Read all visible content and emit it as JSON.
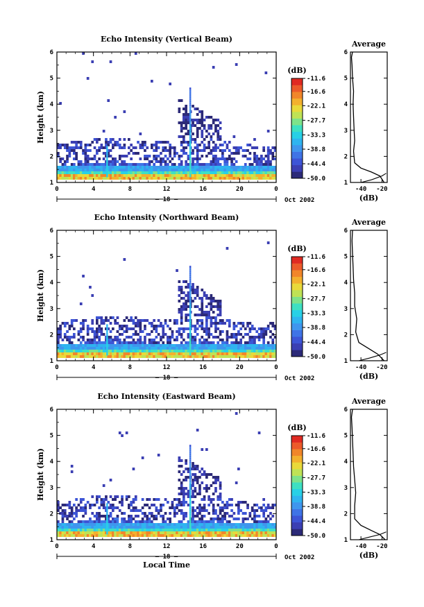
{
  "chart_data": [
    {
      "type": "heatmap",
      "title": "Echo Intensity (Vertical Beam)",
      "ylabel": "Height (km)",
      "x_ticks": [
        "0",
        "4",
        "8",
        "12",
        "16",
        "20",
        "0"
      ],
      "xlim": [
        0,
        24
      ],
      "y_ticks": [
        "1",
        "2",
        "3",
        "4",
        "5",
        "6"
      ],
      "ylim": [
        1,
        6
      ],
      "date_label": "18",
      "date_suffix": "Oct 2002",
      "colorbar": {
        "unit": "(dB)",
        "ticks": [
          "-11.6",
          "-16.6",
          "-22.1",
          "-27.7",
          "-33.3",
          "-38.8",
          "-44.4",
          "-50.0"
        ],
        "range": [
          -50.0,
          -11.6
        ]
      },
      "profile": {
        "title": "Average",
        "xlabel": "(dB)",
        "x_ticks": [
          "-40",
          "-20"
        ],
        "xlim": [
          -50,
          -15
        ],
        "y_ticks": [
          "1",
          "2",
          "3",
          "4",
          "5",
          "6"
        ],
        "ylim": [
          1,
          6
        ],
        "line": [
          [
            -18,
            1.0
          ],
          [
            -22,
            1.25
          ],
          [
            -30,
            1.4
          ],
          [
            -40,
            1.55
          ],
          [
            -46,
            1.75
          ],
          [
            -47,
            2.2
          ],
          [
            -46,
            2.6
          ],
          [
            -46.5,
            3.0
          ],
          [
            -47,
            3.5
          ],
          [
            -47.5,
            4.0
          ],
          [
            -47,
            4.5
          ],
          [
            -48,
            5.0
          ],
          [
            -48.5,
            5.5
          ],
          [
            -49,
            5.8
          ],
          [
            -48,
            6.0
          ]
        ],
        "line2": [
          [
            -40,
            1.0
          ],
          [
            -30,
            1.1
          ],
          [
            -20,
            1.25
          ],
          [
            -16,
            1.35
          ]
        ]
      }
    },
    {
      "type": "heatmap",
      "title": "Echo Intensity (Northward Beam)",
      "ylabel": "Height (km)",
      "x_ticks": [
        "0",
        "4",
        "8",
        "12",
        "16",
        "20",
        "0"
      ],
      "xlim": [
        0,
        24
      ],
      "y_ticks": [
        "1",
        "2",
        "3",
        "4",
        "5",
        "6"
      ],
      "ylim": [
        1,
        6
      ],
      "date_label": "18",
      "date_suffix": "Oct 2002",
      "colorbar": {
        "unit": "(dB)",
        "ticks": [
          "-11.6",
          "-16.6",
          "-22.1",
          "-27.7",
          "-33.3",
          "-38.8",
          "-44.4",
          "-50.0"
        ],
        "range": [
          -50.0,
          -11.6
        ]
      },
      "profile": {
        "title": "Average",
        "xlabel": "(dB)",
        "x_ticks": [
          "-40",
          "-20"
        ],
        "xlim": [
          -50,
          -15
        ],
        "y_ticks": [
          "1",
          "2",
          "3",
          "4",
          "5",
          "6"
        ],
        "ylim": [
          1,
          6
        ],
        "line": [
          [
            -18,
            1.0
          ],
          [
            -24,
            1.25
          ],
          [
            -32,
            1.45
          ],
          [
            -42,
            1.7
          ],
          [
            -45,
            2.1
          ],
          [
            -44,
            2.6
          ],
          [
            -46,
            3.1
          ],
          [
            -46,
            3.6
          ],
          [
            -47,
            4.1
          ],
          [
            -47.5,
            4.6
          ],
          [
            -48,
            5.1
          ],
          [
            -48.5,
            5.6
          ],
          [
            -48,
            6.0
          ]
        ],
        "line2": [
          [
            -42,
            1.0
          ],
          [
            -32,
            1.1
          ],
          [
            -22,
            1.22
          ],
          [
            -16,
            1.32
          ]
        ]
      }
    },
    {
      "type": "heatmap",
      "title": "Echo Intensity (Eastward Beam)",
      "ylabel": "Height (km)",
      "xlabel": "Local Time",
      "x_ticks": [
        "0",
        "4",
        "8",
        "12",
        "16",
        "20",
        "0"
      ],
      "xlim": [
        0,
        24
      ],
      "y_ticks": [
        "1",
        "2",
        "3",
        "4",
        "5",
        "6"
      ],
      "ylim": [
        1,
        6
      ],
      "date_label": "18",
      "date_suffix": "Oct 2002",
      "colorbar": {
        "unit": "(dB)",
        "ticks": [
          "-11.6",
          "-16.6",
          "-22.1",
          "-27.7",
          "-33.3",
          "-38.8",
          "-44.4",
          "-50.0"
        ],
        "range": [
          -50.0,
          -11.6
        ]
      },
      "profile": {
        "title": "Average",
        "xlabel": "(dB)",
        "x_ticks": [
          "-40",
          "-20"
        ],
        "xlim": [
          -50,
          -15
        ],
        "y_ticks": [
          "1",
          "2",
          "3",
          "4",
          "5",
          "6"
        ],
        "ylim": [
          1,
          6
        ],
        "line": [
          [
            -17,
            1.0
          ],
          [
            -22,
            1.2
          ],
          [
            -30,
            1.35
          ],
          [
            -40,
            1.55
          ],
          [
            -46,
            1.8
          ],
          [
            -46,
            2.3
          ],
          [
            -45,
            2.8
          ],
          [
            -46,
            3.3
          ],
          [
            -47,
            3.8
          ],
          [
            -47.5,
            4.3
          ],
          [
            -48,
            4.8
          ],
          [
            -48.5,
            5.3
          ],
          [
            -49,
            5.7
          ],
          [
            -48,
            6.0
          ]
        ],
        "line2": [
          [
            -42,
            1.0
          ],
          [
            -32,
            1.1
          ],
          [
            -22,
            1.2
          ],
          [
            -16,
            1.3
          ]
        ]
      }
    }
  ],
  "colors": {
    "scale": [
      "#2c2a78",
      "#3b3fb3",
      "#3d55d6",
      "#3f74e6",
      "#3f96ee",
      "#2fb4f0",
      "#28d0e6",
      "#3ee0c2",
      "#7ee28a",
      "#bfe255",
      "#e9d93a",
      "#f3b02e",
      "#f1862a",
      "#ec5a2a",
      "#e02a22"
    ]
  }
}
